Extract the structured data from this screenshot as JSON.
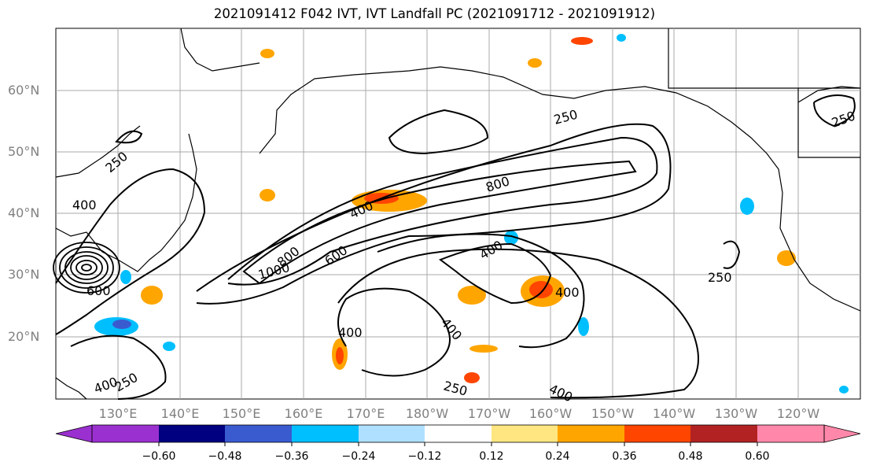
{
  "title": "2021091412 F042 IVT, IVT Landfall PC (2021091712 - 2021091912)",
  "lat_labels": [
    "60°N",
    "50°N",
    "40°N",
    "30°N",
    "20°N"
  ],
  "lon_labels": [
    "130°E",
    "140°E",
    "150°E",
    "160°E",
    "170°E",
    "180°W",
    "170°W",
    "160°W",
    "150°W",
    "140°W",
    "130°W",
    "120°W"
  ],
  "contour_labels": [
    "250",
    "250",
    "250",
    "250",
    "250",
    "250",
    "400",
    "400",
    "400",
    "400",
    "400",
    "400",
    "400",
    "400",
    "600",
    "600",
    "800",
    "800",
    "1000"
  ],
  "colorbar": {
    "ticks": [
      "−0.60",
      "−0.48",
      "−0.36",
      "−0.24",
      "−0.12",
      "0.12",
      "0.24",
      "0.36",
      "0.48",
      "0.60"
    ],
    "colors": [
      "#9b30d0",
      "#000080",
      "#3a5bd0",
      "#00bfff",
      "#b0e0ff",
      "#ffffff",
      "#ffe680",
      "#ffa500",
      "#ff4500",
      "#b22222",
      "#ff88aa"
    ]
  },
  "colors": {
    "grid": "#a9a9a9",
    "coast": "#000000",
    "pos_mid": "#ffa500",
    "pos_high": "#ff4500",
    "neg_mid": "#00bfff",
    "neg_light": "#b0e0ff"
  }
}
